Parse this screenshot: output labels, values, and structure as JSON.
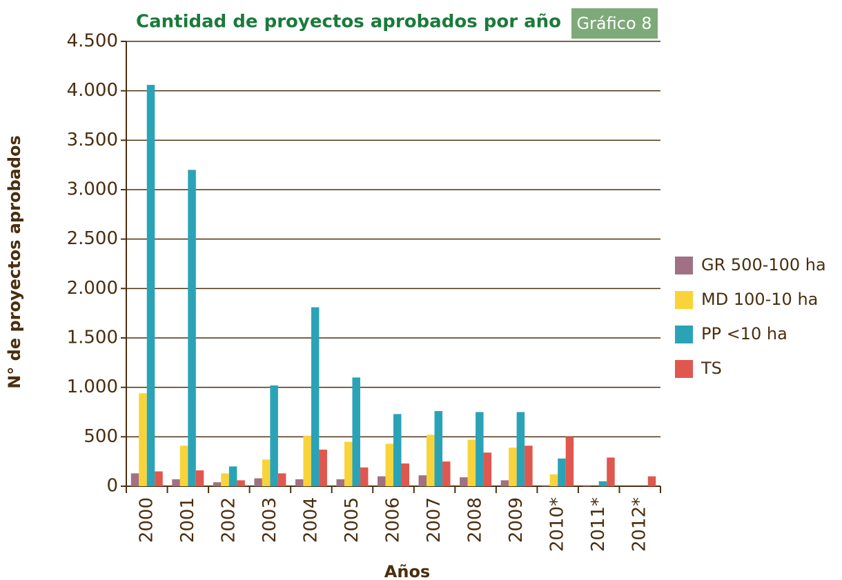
{
  "chart_data": {
    "type": "bar",
    "title": "Cantidad de proyectos aprobados por año",
    "annotation": "Gráfico 8",
    "x_label": "Años",
    "y_label": "N° de proyectos aprobados",
    "categories": [
      "2000",
      "2001",
      "2002",
      "2003",
      "2004",
      "2005",
      "2006",
      "2007",
      "2008",
      "2009",
      "2010*",
      "2011*",
      "2012*"
    ],
    "series": [
      {
        "name": "GR 500-100 ha",
        "color": "#a07185",
        "values": [
          130,
          70,
          40,
          80,
          70,
          70,
          100,
          110,
          90,
          60,
          10,
          10,
          0
        ]
      },
      {
        "name": "MD 100-10 ha",
        "color": "#f8d43a",
        "values": [
          940,
          410,
          130,
          270,
          510,
          450,
          430,
          520,
          470,
          390,
          120,
          0,
          0
        ]
      },
      {
        "name": "PP <10 ha",
        "color": "#2aa3b7",
        "values": [
          4060,
          3200,
          200,
          1020,
          1810,
          1100,
          730,
          760,
          750,
          750,
          280,
          50,
          0
        ]
      },
      {
        "name": "TS",
        "color": "#e0574f",
        "values": [
          150,
          160,
          60,
          130,
          370,
          190,
          230,
          250,
          340,
          410,
          500,
          290,
          100
        ]
      }
    ],
    "ylim": [
      0,
      4500
    ],
    "yticks": [
      0,
      500,
      {
        "value": 1000,
        "label": "1.000"
      },
      {
        "value": 1500,
        "label": "1.500"
      },
      {
        "value": 2000,
        "label": "2.000"
      },
      {
        "value": 2500,
        "label": "2.500"
      },
      {
        "value": 3000,
        "label": "3.000"
      },
      {
        "value": 3500,
        "label": "3.500"
      },
      {
        "value": 4000,
        "label": "4.000"
      },
      {
        "value": 4500,
        "label": "4.500"
      }
    ],
    "grid": true,
    "legend": "right"
  }
}
